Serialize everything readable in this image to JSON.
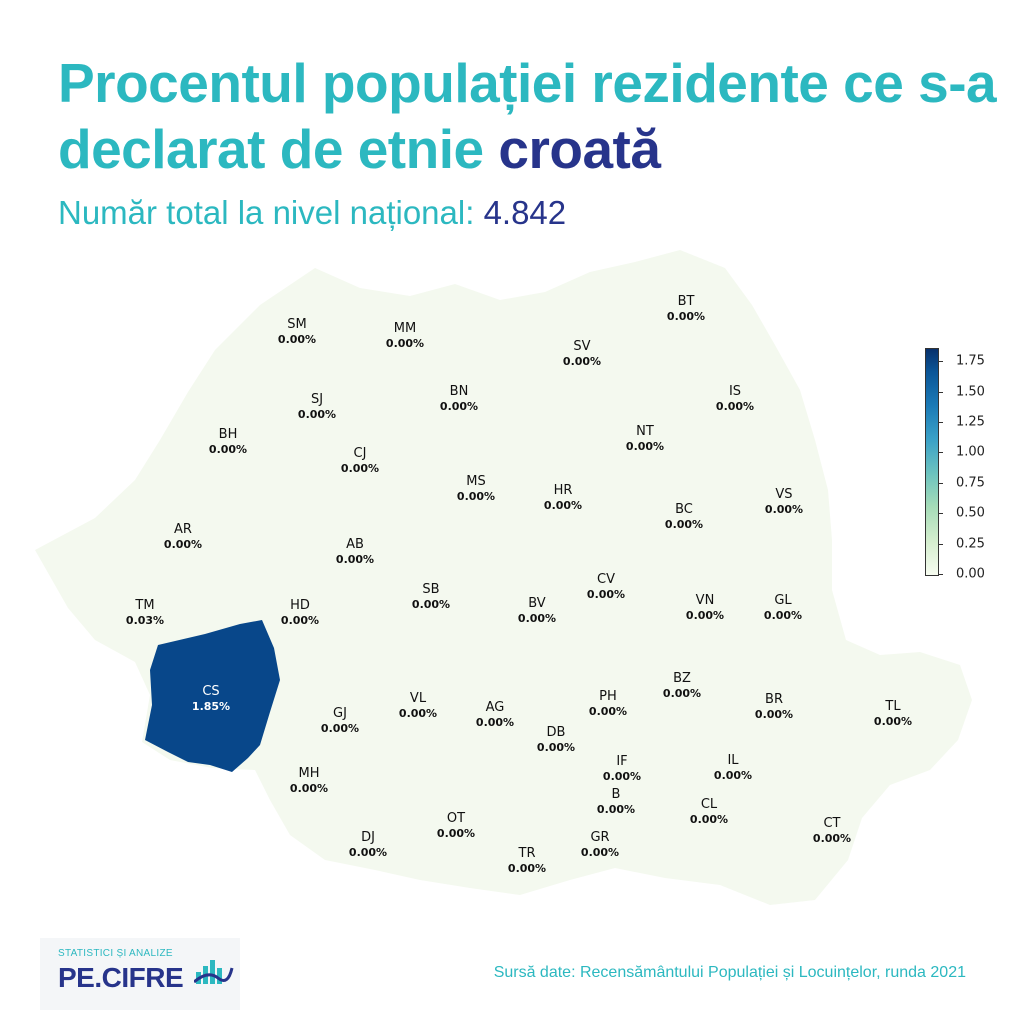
{
  "header": {
    "title_main": "Procentul populației rezidente ce s-a declarat de etnie",
    "title_accent": "croată",
    "subtitle_label": "Număr total la nivel național:",
    "subtitle_value": "4.842"
  },
  "map": {
    "colorbar": {
      "ticks": [
        "1.75",
        "1.50",
        "1.25",
        "1.00",
        "0.75",
        "0.50",
        "0.25",
        "0.00"
      ],
      "range": [
        0,
        1.85
      ],
      "colors": [
        "#f7fcf0",
        "#d4eece",
        "#a6dcb8",
        "#6cc3bf",
        "#3aa1c7",
        "#1b7ab6",
        "#0b5597",
        "#08306b"
      ]
    },
    "base_color": "#f4f9ef",
    "highlight_color": "#08478a",
    "counties": [
      {
        "code": "BT",
        "value": "0.00%"
      },
      {
        "code": "SM",
        "value": "0.00%"
      },
      {
        "code": "MM",
        "value": "0.00%"
      },
      {
        "code": "SV",
        "value": "0.00%"
      },
      {
        "code": "IS",
        "value": "0.00%"
      },
      {
        "code": "SJ",
        "value": "0.00%"
      },
      {
        "code": "BN",
        "value": "0.00%"
      },
      {
        "code": "BH",
        "value": "0.00%"
      },
      {
        "code": "CJ",
        "value": "0.00%"
      },
      {
        "code": "NT",
        "value": "0.00%"
      },
      {
        "code": "MS",
        "value": "0.00%"
      },
      {
        "code": "HR",
        "value": "0.00%"
      },
      {
        "code": "BC",
        "value": "0.00%"
      },
      {
        "code": "VS",
        "value": "0.00%"
      },
      {
        "code": "AR",
        "value": "0.00%"
      },
      {
        "code": "AB",
        "value": "0.00%"
      },
      {
        "code": "CV",
        "value": "0.00%"
      },
      {
        "code": "SB",
        "value": "0.00%"
      },
      {
        "code": "BV",
        "value": "0.00%"
      },
      {
        "code": "VN",
        "value": "0.00%"
      },
      {
        "code": "GL",
        "value": "0.00%"
      },
      {
        "code": "TM",
        "value": "0.03%"
      },
      {
        "code": "HD",
        "value": "0.00%"
      },
      {
        "code": "CS",
        "value": "1.85%"
      },
      {
        "code": "BZ",
        "value": "0.00%"
      },
      {
        "code": "PH",
        "value": "0.00%"
      },
      {
        "code": "VL",
        "value": "0.00%"
      },
      {
        "code": "AG",
        "value": "0.00%"
      },
      {
        "code": "GJ",
        "value": "0.00%"
      },
      {
        "code": "BR",
        "value": "0.00%"
      },
      {
        "code": "TL",
        "value": "0.00%"
      },
      {
        "code": "DB",
        "value": "0.00%"
      },
      {
        "code": "IF",
        "value": "0.00%"
      },
      {
        "code": "IL",
        "value": "0.00%"
      },
      {
        "code": "MH",
        "value": "0.00%"
      },
      {
        "code": "B",
        "value": "0.00%"
      },
      {
        "code": "CL",
        "value": "0.00%"
      },
      {
        "code": "OT",
        "value": "0.00%"
      },
      {
        "code": "CT",
        "value": "0.00%"
      },
      {
        "code": "DJ",
        "value": "0.00%"
      },
      {
        "code": "GR",
        "value": "0.00%"
      },
      {
        "code": "TR",
        "value": "0.00%"
      }
    ]
  },
  "footer": {
    "logo_tagline": "STATISTICI ȘI ANALIZE",
    "logo_name": "PE.CIFRE",
    "source": "Sursă date: Recensământului Populației și Locuințelor, runda 2021"
  }
}
